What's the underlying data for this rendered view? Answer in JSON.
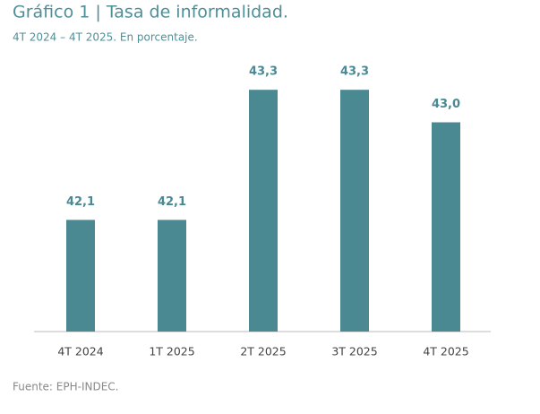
{
  "chart_data": {
    "type": "bar",
    "title": "Gráfico 1 | Tasa de informalidad.",
    "subtitle": "4T 2024 – 4T 2025. En porcentaje.",
    "categories": [
      "4T 2024",
      "1T 2025",
      "2T 2025",
      "3T 2025",
      "4T 2025"
    ],
    "values": [
      42.1,
      42.1,
      43.3,
      43.3,
      43.0
    ],
    "value_labels": [
      "42,1",
      "42,1",
      "43,3",
      "43,3",
      "43,0"
    ],
    "color": "#4a8892",
    "ylim": [
      41.07,
      43.5
    ],
    "source": "Fuente: EPH-INDEC."
  }
}
